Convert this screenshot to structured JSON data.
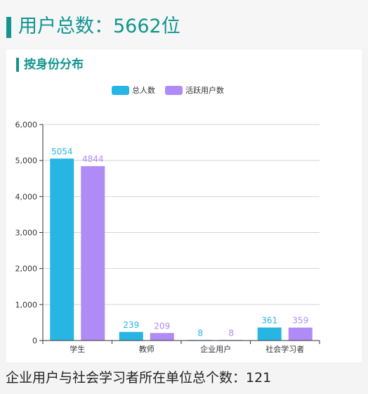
{
  "header": {
    "title": "用户总数：5662位"
  },
  "section": {
    "title": "按身份分布"
  },
  "footer": {
    "text": "企业用户与社会学习者所在单位总个数：121"
  },
  "chart_data": {
    "type": "bar",
    "title": "",
    "categories": [
      "学生",
      "教师",
      "企业用户",
      "社会学习者"
    ],
    "series": [
      {
        "name": "总人数",
        "values": [
          5054,
          239,
          8,
          361
        ],
        "color": "#27b5e4"
      },
      {
        "name": "活跃用户数",
        "values": [
          4844,
          209,
          8,
          359
        ],
        "color": "#af8cf5"
      }
    ],
    "ylim": [
      0,
      6000
    ],
    "yticks": [
      "0",
      "1,000",
      "2,000",
      "3,000",
      "4,000",
      "5,000",
      "6,000"
    ],
    "grid": true,
    "legend": "top-center",
    "xlabel": "",
    "ylabel": ""
  }
}
